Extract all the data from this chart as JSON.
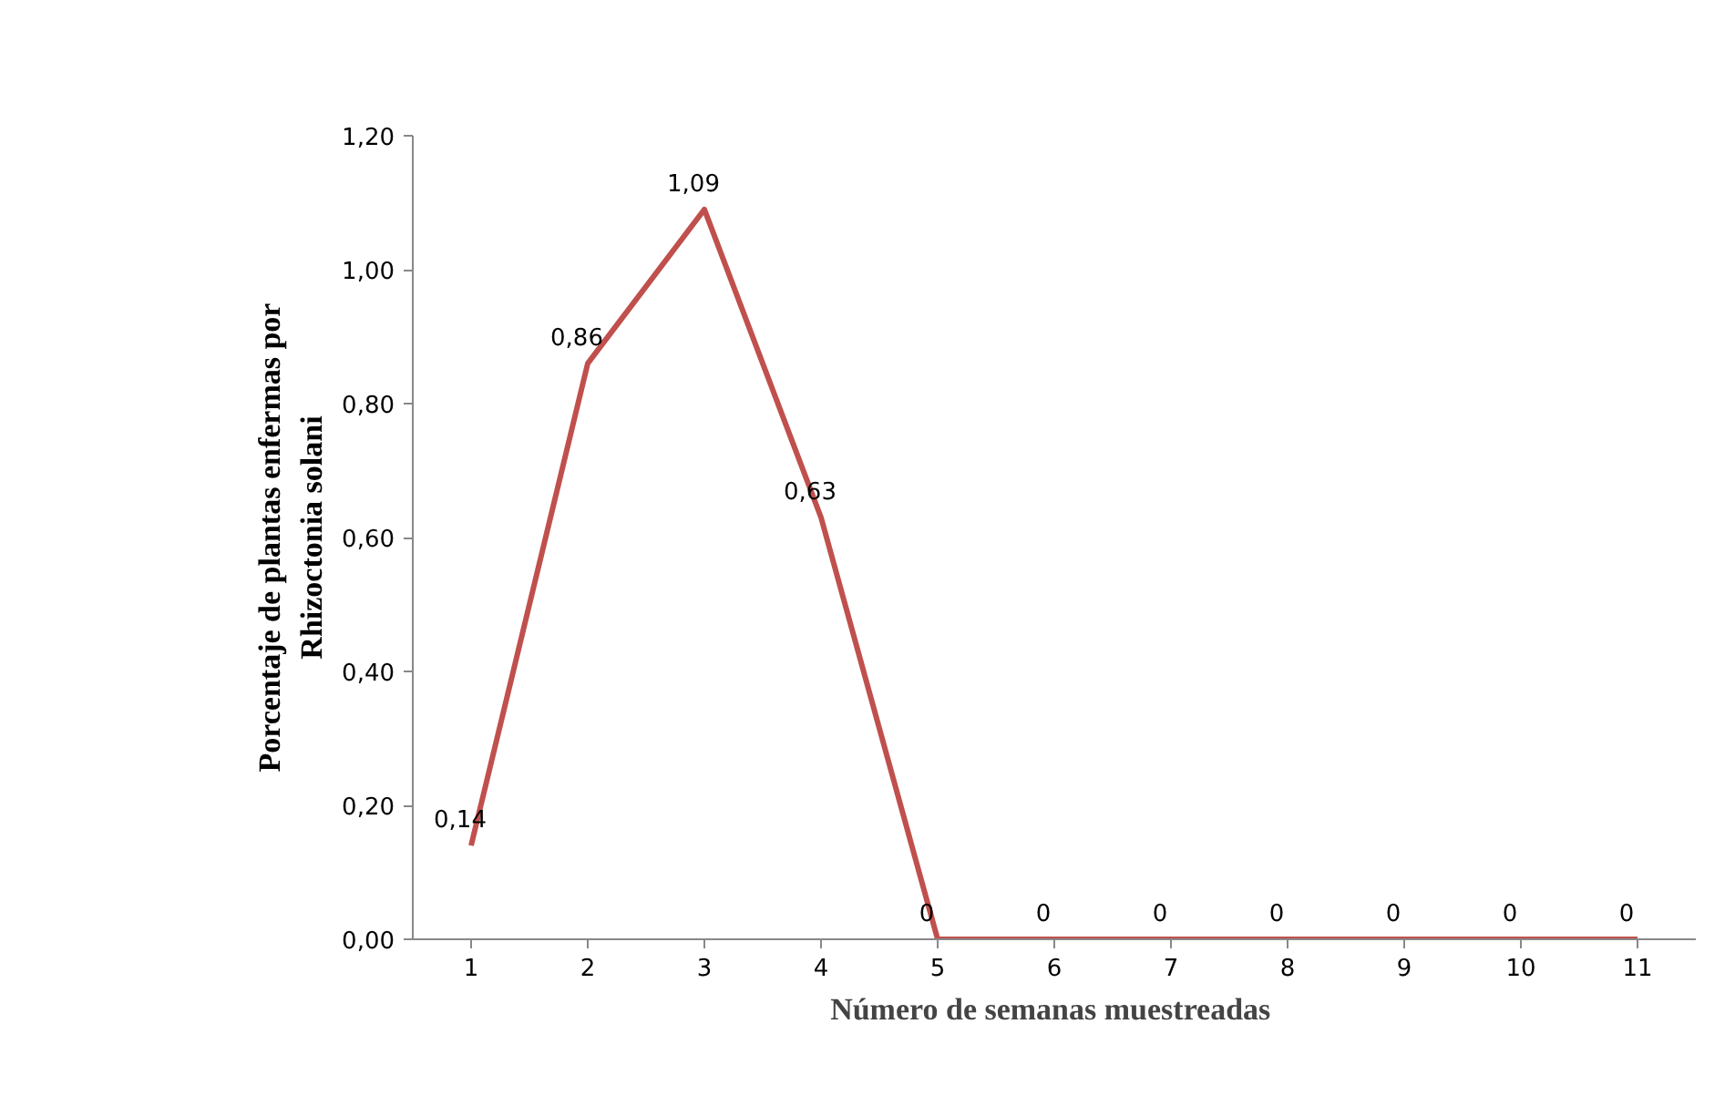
{
  "chart_data": {
    "type": "line",
    "xlabel": "Número de  semanas muestreadas",
    "ylabel": "Porcentaje de plantas enfermas por\nRhizoctonia solani",
    "categories": [
      "1",
      "2",
      "3",
      "4",
      "5",
      "6",
      "7",
      "8",
      "9",
      "10",
      "11"
    ],
    "series": [
      {
        "color": "#c0504d",
        "values": [
          0.14,
          0.86,
          1.09,
          0.63,
          0,
          0,
          0,
          0,
          0,
          0,
          0
        ],
        "value_labels": [
          "0,14",
          "0,86",
          "1,09",
          "0,63",
          "0",
          "0",
          "0",
          "0",
          "0",
          "0",
          "0"
        ]
      }
    ],
    "ylim": [
      0,
      1.2
    ],
    "yticks": [
      {
        "value": 0,
        "label": "0,00"
      },
      {
        "value": 0.2,
        "label": "0,20"
      },
      {
        "value": 0.4,
        "label": "0,40"
      },
      {
        "value": 0.6,
        "label": "0,60"
      },
      {
        "value": 0.8,
        "label": "0,80"
      },
      {
        "value": 1.0,
        "label": "1,00"
      },
      {
        "value": 1.2,
        "label": "1,20"
      }
    ],
    "grid": false,
    "marker": "none",
    "line_style": "solid"
  }
}
